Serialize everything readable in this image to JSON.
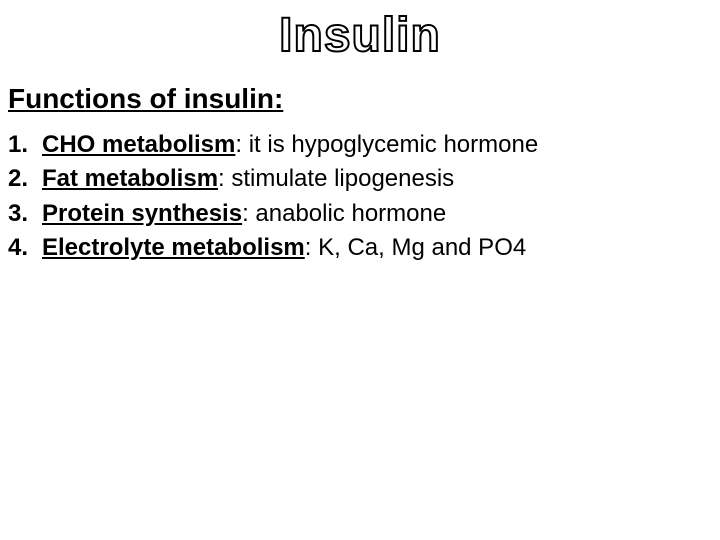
{
  "title": "Insulin",
  "subtitle_prefix": "Functions of insulin:",
  "subtitle_trailing_space": " ",
  "items": [
    {
      "num": "1.",
      "term": "CHO metabolism",
      "rest": ": it is hypoglycemic hormone"
    },
    {
      "num": "2.",
      "term": "Fat metabolism",
      "rest": ": stimulate lipogenesis"
    },
    {
      "num": "3.",
      "term": "Protein synthesis",
      "rest": ": anabolic hormone"
    },
    {
      "num": "4.",
      "term": "Electrolyte metabolism",
      "rest": ": K, Ca, Mg and PO4"
    }
  ],
  "style": {
    "background_color": "#ffffff",
    "text_color": "#000000",
    "title_fontsize": 48,
    "subtitle_fontsize": 28,
    "body_fontsize": 24,
    "font_family": "Arial"
  }
}
